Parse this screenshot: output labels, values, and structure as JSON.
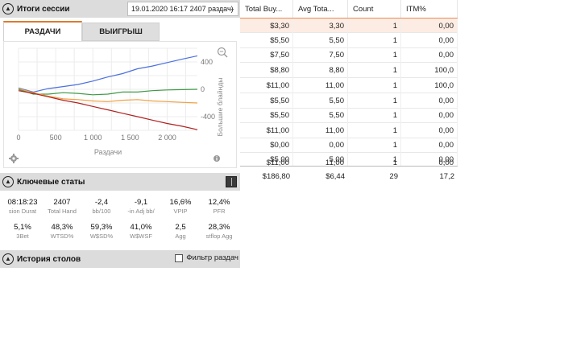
{
  "session": {
    "title": "Итоги сессии",
    "dropdown": "19.01.2020 16:17 2407 раздач)",
    "tabs": [
      "РАЗДАЧИ",
      "ВЫИГРЫШ"
    ]
  },
  "chart_data": {
    "type": "line",
    "xlabel": "Раздачи",
    "ylabel": "Большие блайнды",
    "x_ticks": [
      "0",
      "500",
      "1 000",
      "1 500",
      "2 000"
    ],
    "y_ticks": [
      "400",
      "0",
      "-400"
    ],
    "xlim": [
      0,
      2407
    ],
    "ylim": [
      -600,
      600
    ],
    "grid": true,
    "y_axis_side": "right",
    "series": [
      {
        "color": "#4a6fe0",
        "x": [
          0,
          200,
          400,
          600,
          800,
          1000,
          1200,
          1400,
          1600,
          1800,
          2000,
          2200,
          2407
        ],
        "values": [
          20,
          -40,
          10,
          40,
          70,
          120,
          180,
          230,
          300,
          340,
          390,
          440,
          490
        ]
      },
      {
        "color": "#3e9a45",
        "x": [
          0,
          200,
          400,
          600,
          800,
          1000,
          1200,
          1400,
          1600,
          1800,
          2000,
          2200,
          2407
        ],
        "values": [
          0,
          -70,
          -70,
          -50,
          -60,
          -80,
          -70,
          -40,
          -40,
          -20,
          -10,
          -5,
          0
        ]
      },
      {
        "color": "#f0a040",
        "x": [
          0,
          200,
          400,
          600,
          800,
          1000,
          1200,
          1400,
          1600,
          1800,
          2000,
          2200,
          2407
        ],
        "values": [
          10,
          -50,
          -100,
          -140,
          -150,
          -170,
          -180,
          -160,
          -150,
          -170,
          -180,
          -190,
          -200
        ]
      },
      {
        "color": "#b02020",
        "x": [
          0,
          200,
          400,
          600,
          800,
          1000,
          1200,
          1400,
          1600,
          1800,
          2000,
          2200,
          2407
        ],
        "values": [
          -20,
          -60,
          -110,
          -160,
          -200,
          -250,
          -300,
          -350,
          -400,
          -450,
          -500,
          -540,
          -590
        ]
      }
    ]
  },
  "key_stats": {
    "title": "Ключевые статы",
    "items": [
      {
        "value": "08:18:23",
        "label": "sion Durat"
      },
      {
        "value": "2407",
        "label": "Total Hand"
      },
      {
        "value": "-2,4",
        "label": "bb/100"
      },
      {
        "value": "-9,1",
        "label": "-in Adj bb/"
      },
      {
        "value": "16,6%",
        "label": "VPIP"
      },
      {
        "value": "12,4%",
        "label": "PFR"
      },
      {
        "value": "5,1%",
        "label": "3Bet"
      },
      {
        "value": "48,3%",
        "label": "WTSD%"
      },
      {
        "value": "59,3%",
        "label": "W$SD%"
      },
      {
        "value": "41,0%",
        "label": "W$WSF"
      },
      {
        "value": "2,5",
        "label": "Agg"
      },
      {
        "value": "28,3%",
        "label": "stflop Agg"
      }
    ]
  },
  "history": {
    "title": "История столов",
    "filter_label": "Фильтр раздач"
  },
  "table": {
    "headers": [
      "Total Buy...",
      "Avg Tota...",
      "Count",
      "ITM%"
    ],
    "rows": [
      [
        "$3,30",
        "3,30",
        "1",
        "0,00"
      ],
      [
        "$5,50",
        "5,50",
        "1",
        "0,00"
      ],
      [
        "$7,50",
        "7,50",
        "1",
        "0,00"
      ],
      [
        "$8,80",
        "8,80",
        "1",
        "100,0"
      ],
      [
        "$11,00",
        "11,00",
        "1",
        "100,0"
      ],
      [
        "$5,50",
        "5,50",
        "1",
        "0,00"
      ],
      [
        "$5,50",
        "5,50",
        "1",
        "0,00"
      ],
      [
        "$11,00",
        "11,00",
        "1",
        "0,00"
      ],
      [
        "$0,00",
        "0,00",
        "1",
        "0,00"
      ],
      [
        "$5,00",
        "5,00",
        "1",
        "0,00"
      ],
      [
        "$11,00",
        "11,00",
        "1",
        "0,00"
      ]
    ],
    "totals": [
      "$186,80",
      "$6,44",
      "29",
      "17,2"
    ]
  }
}
